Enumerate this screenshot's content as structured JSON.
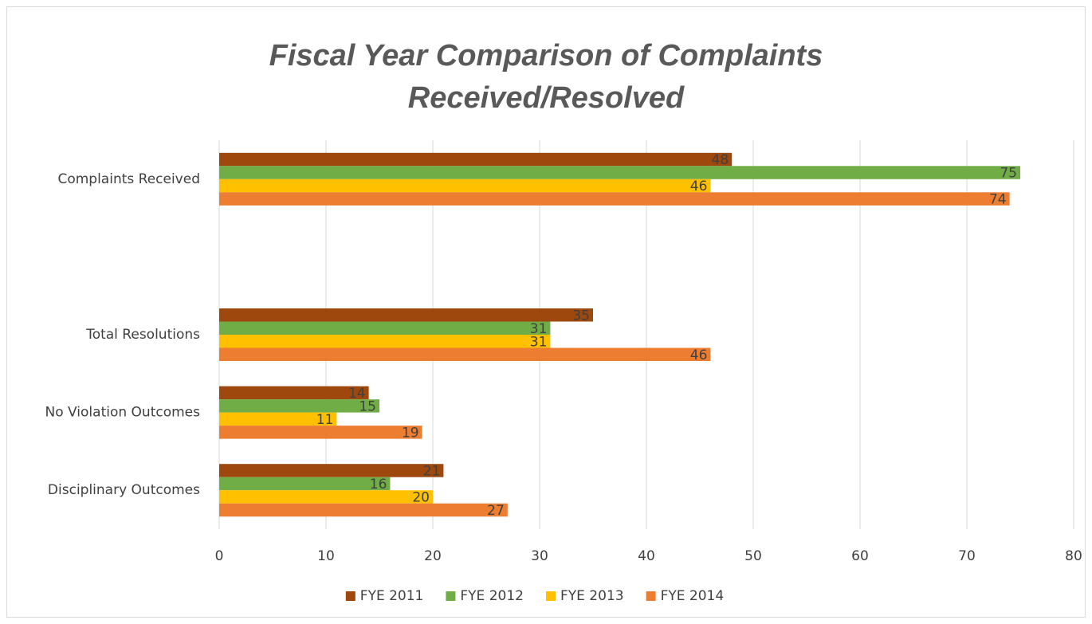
{
  "chart_data": {
    "type": "hbar",
    "title": "Fiscal Year Comparison of Complaints Received/Resolved",
    "categories": [
      "Complaints Received",
      null,
      "Total Resolutions",
      "No Violation Outcomes",
      "Disciplinary Outcomes"
    ],
    "series": [
      {
        "name": "FYE 2011",
        "color": "#9e480e",
        "values": [
          48,
          null,
          35,
          14,
          21
        ]
      },
      {
        "name": "FYE 2012",
        "color": "#70ad47",
        "values": [
          75,
          null,
          31,
          15,
          16
        ]
      },
      {
        "name": "FYE 2013",
        "color": "#ffc000",
        "values": [
          46,
          null,
          31,
          11,
          20
        ]
      },
      {
        "name": "FYE 2014",
        "color": "#ed7d31",
        "values": [
          74,
          null,
          46,
          19,
          27
        ]
      }
    ],
    "xlim": [
      0,
      80
    ],
    "xticks": [
      0,
      10,
      20,
      30,
      40,
      50,
      60,
      70,
      80
    ],
    "grid": true,
    "legend": "bottom"
  }
}
